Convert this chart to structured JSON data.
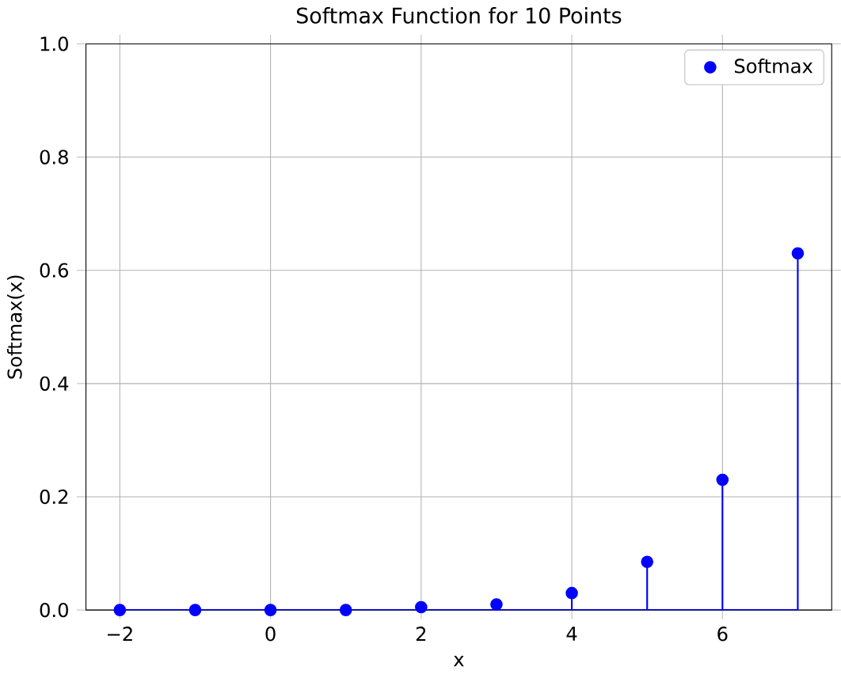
{
  "chart_data": {
    "type": "lollipop",
    "title": "Softmax Function for 10 Points",
    "xlabel": "x",
    "ylabel": "Softmax(x)",
    "x": [
      -2,
      -1,
      0,
      1,
      2,
      3,
      4,
      5,
      6,
      7
    ],
    "series": [
      {
        "name": "Softmax",
        "color": "#0000ff",
        "values": [
          0,
          0,
          0,
          0,
          0.005,
          0.01,
          0.03,
          0.085,
          0.23,
          0.63
        ]
      }
    ],
    "xlim": [
      -2.45,
      7.45
    ],
    "ylim": [
      0,
      1
    ],
    "xticks": [
      {
        "value": -2,
        "label": "−2"
      },
      0,
      2,
      4,
      6
    ],
    "yticks": [
      {
        "value": 0,
        "label": "0.0"
      },
      {
        "value": 0.2,
        "label": "0.2"
      },
      {
        "value": 0.4,
        "label": "0.4"
      },
      {
        "value": 0.6,
        "label": "0.6"
      },
      {
        "value": 0.8,
        "label": "0.8"
      },
      {
        "value": 1,
        "label": "1.0"
      }
    ],
    "grid": true,
    "legend": "top right",
    "marker": "circle"
  }
}
